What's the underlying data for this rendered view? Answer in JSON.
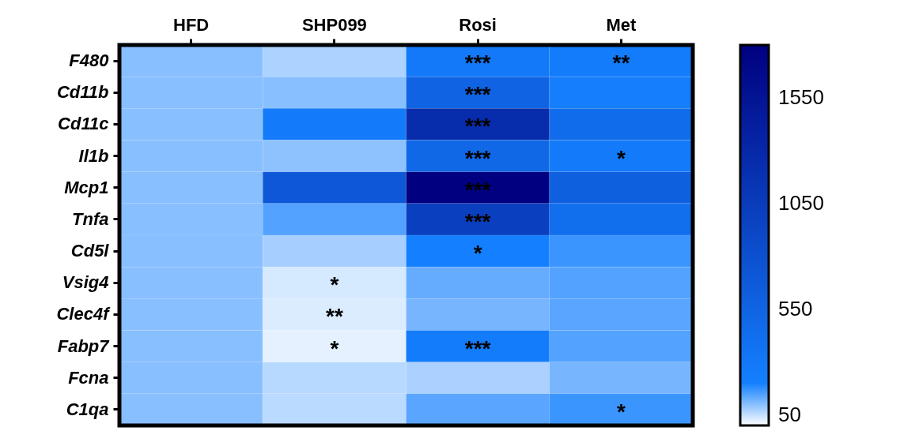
{
  "chart_data": {
    "type": "heatmap",
    "categories": [
      "HFD",
      "SHP099",
      "Rosi",
      "Met"
    ],
    "y_categories": [
      "F480",
      "Cd11b",
      "Cd11c",
      "Il1b",
      "Mcp1",
      "Tnfa",
      "Cd5l",
      "Vsig4",
      "Clec4f",
      "Fabp7",
      "Fcna",
      "C1qa"
    ],
    "cells": [
      [
        100,
        70,
        280,
        250
      ],
      [
        100,
        100,
        550,
        220
      ],
      [
        100,
        260,
        1250,
        450
      ],
      [
        100,
        95,
        500,
        260
      ],
      [
        100,
        700,
        1800,
        600
      ],
      [
        100,
        145,
        1000,
        420
      ],
      [
        100,
        75,
        200,
        165
      ],
      [
        100,
        35,
        130,
        145
      ],
      [
        100,
        30,
        115,
        140
      ],
      [
        100,
        22,
        250,
        145
      ],
      [
        100,
        60,
        72,
        115
      ],
      [
        100,
        58,
        140,
        165
      ]
    ],
    "cell_labels": [
      [
        null,
        null,
        "***",
        "**"
      ],
      [
        null,
        null,
        "***",
        null
      ],
      [
        null,
        null,
        "***",
        null
      ],
      [
        null,
        null,
        "***",
        "*"
      ],
      [
        null,
        null,
        "***",
        null
      ],
      [
        null,
        null,
        "***",
        null
      ],
      [
        null,
        null,
        "*",
        null
      ],
      [
        null,
        "*",
        null,
        null
      ],
      [
        null,
        "**",
        null,
        null
      ],
      [
        null,
        "*",
        "***",
        null
      ],
      [
        null,
        null,
        null,
        null
      ],
      [
        null,
        null,
        null,
        "*"
      ]
    ],
    "clim": [
      0,
      1800
    ],
    "cticks": [
      50,
      550,
      1050,
      1550
    ]
  }
}
